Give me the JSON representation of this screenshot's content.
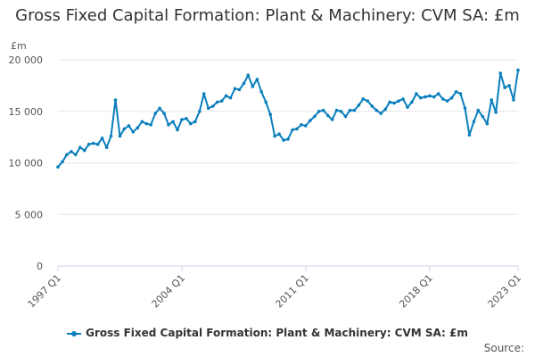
{
  "chart_data": {
    "type": "line",
    "title": "Gross Fixed Capital Formation: Plant & Machinery: CVM SA: £m",
    "unit_label": "£m",
    "xlabel": "",
    "ylabel": "",
    "ylim": [
      0,
      20000
    ],
    "yticks": [
      "0",
      "5 000",
      "10 000",
      "15 000",
      "20 000"
    ],
    "ytick_values": [
      0,
      5000,
      10000,
      15000,
      20000
    ],
    "xtick_labels": [
      "1997 Q1",
      "2004 Q1",
      "2011 Q1",
      "2018 Q1",
      "2023 Q1"
    ],
    "xtick_indices": [
      0,
      28,
      56,
      84,
      104
    ],
    "grid": true,
    "legend_position": "bottom",
    "colors": {
      "series": "#0a7fbd"
    },
    "series": [
      {
        "name": "Gross Fixed Capital Formation: Plant & Machinery: CVM SA: £m",
        "x_start": "1997 Q1",
        "frequency": "quarterly",
        "values": [
          9600,
          10100,
          10800,
          11100,
          10800,
          11500,
          11200,
          11800,
          11900,
          11800,
          12400,
          11500,
          12600,
          16100,
          12600,
          13300,
          13600,
          13000,
          13400,
          14000,
          13800,
          13700,
          14800,
          15300,
          14800,
          13700,
          14000,
          13200,
          14200,
          14300,
          13800,
          14000,
          15000,
          16700,
          15300,
          15500,
          15900,
          16000,
          16500,
          16300,
          17200,
          17100,
          17700,
          18500,
          17400,
          18100,
          16900,
          15900,
          14700,
          12600,
          12800,
          12200,
          12300,
          13200,
          13300,
          13700,
          13600,
          14100,
          14500,
          15000,
          15100,
          14600,
          14200,
          15100,
          15000,
          14500,
          15100,
          15100,
          15600,
          16200,
          16000,
          15500,
          15100,
          14800,
          15200,
          15900,
          15800,
          16000,
          16200,
          15400,
          15900,
          16700,
          16300,
          16400,
          16500,
          16400,
          16700,
          16200,
          16000,
          16300,
          16900,
          16700,
          15300,
          12700,
          14000,
          15100,
          14500,
          13800,
          16100,
          14900,
          18700,
          17300,
          17500,
          16100,
          19000
        ]
      }
    ]
  },
  "legend": {
    "label": "Gross Fixed Capital Formation: Plant & Machinery: CVM SA: £m"
  },
  "footer": {
    "source_label": "Source:"
  }
}
